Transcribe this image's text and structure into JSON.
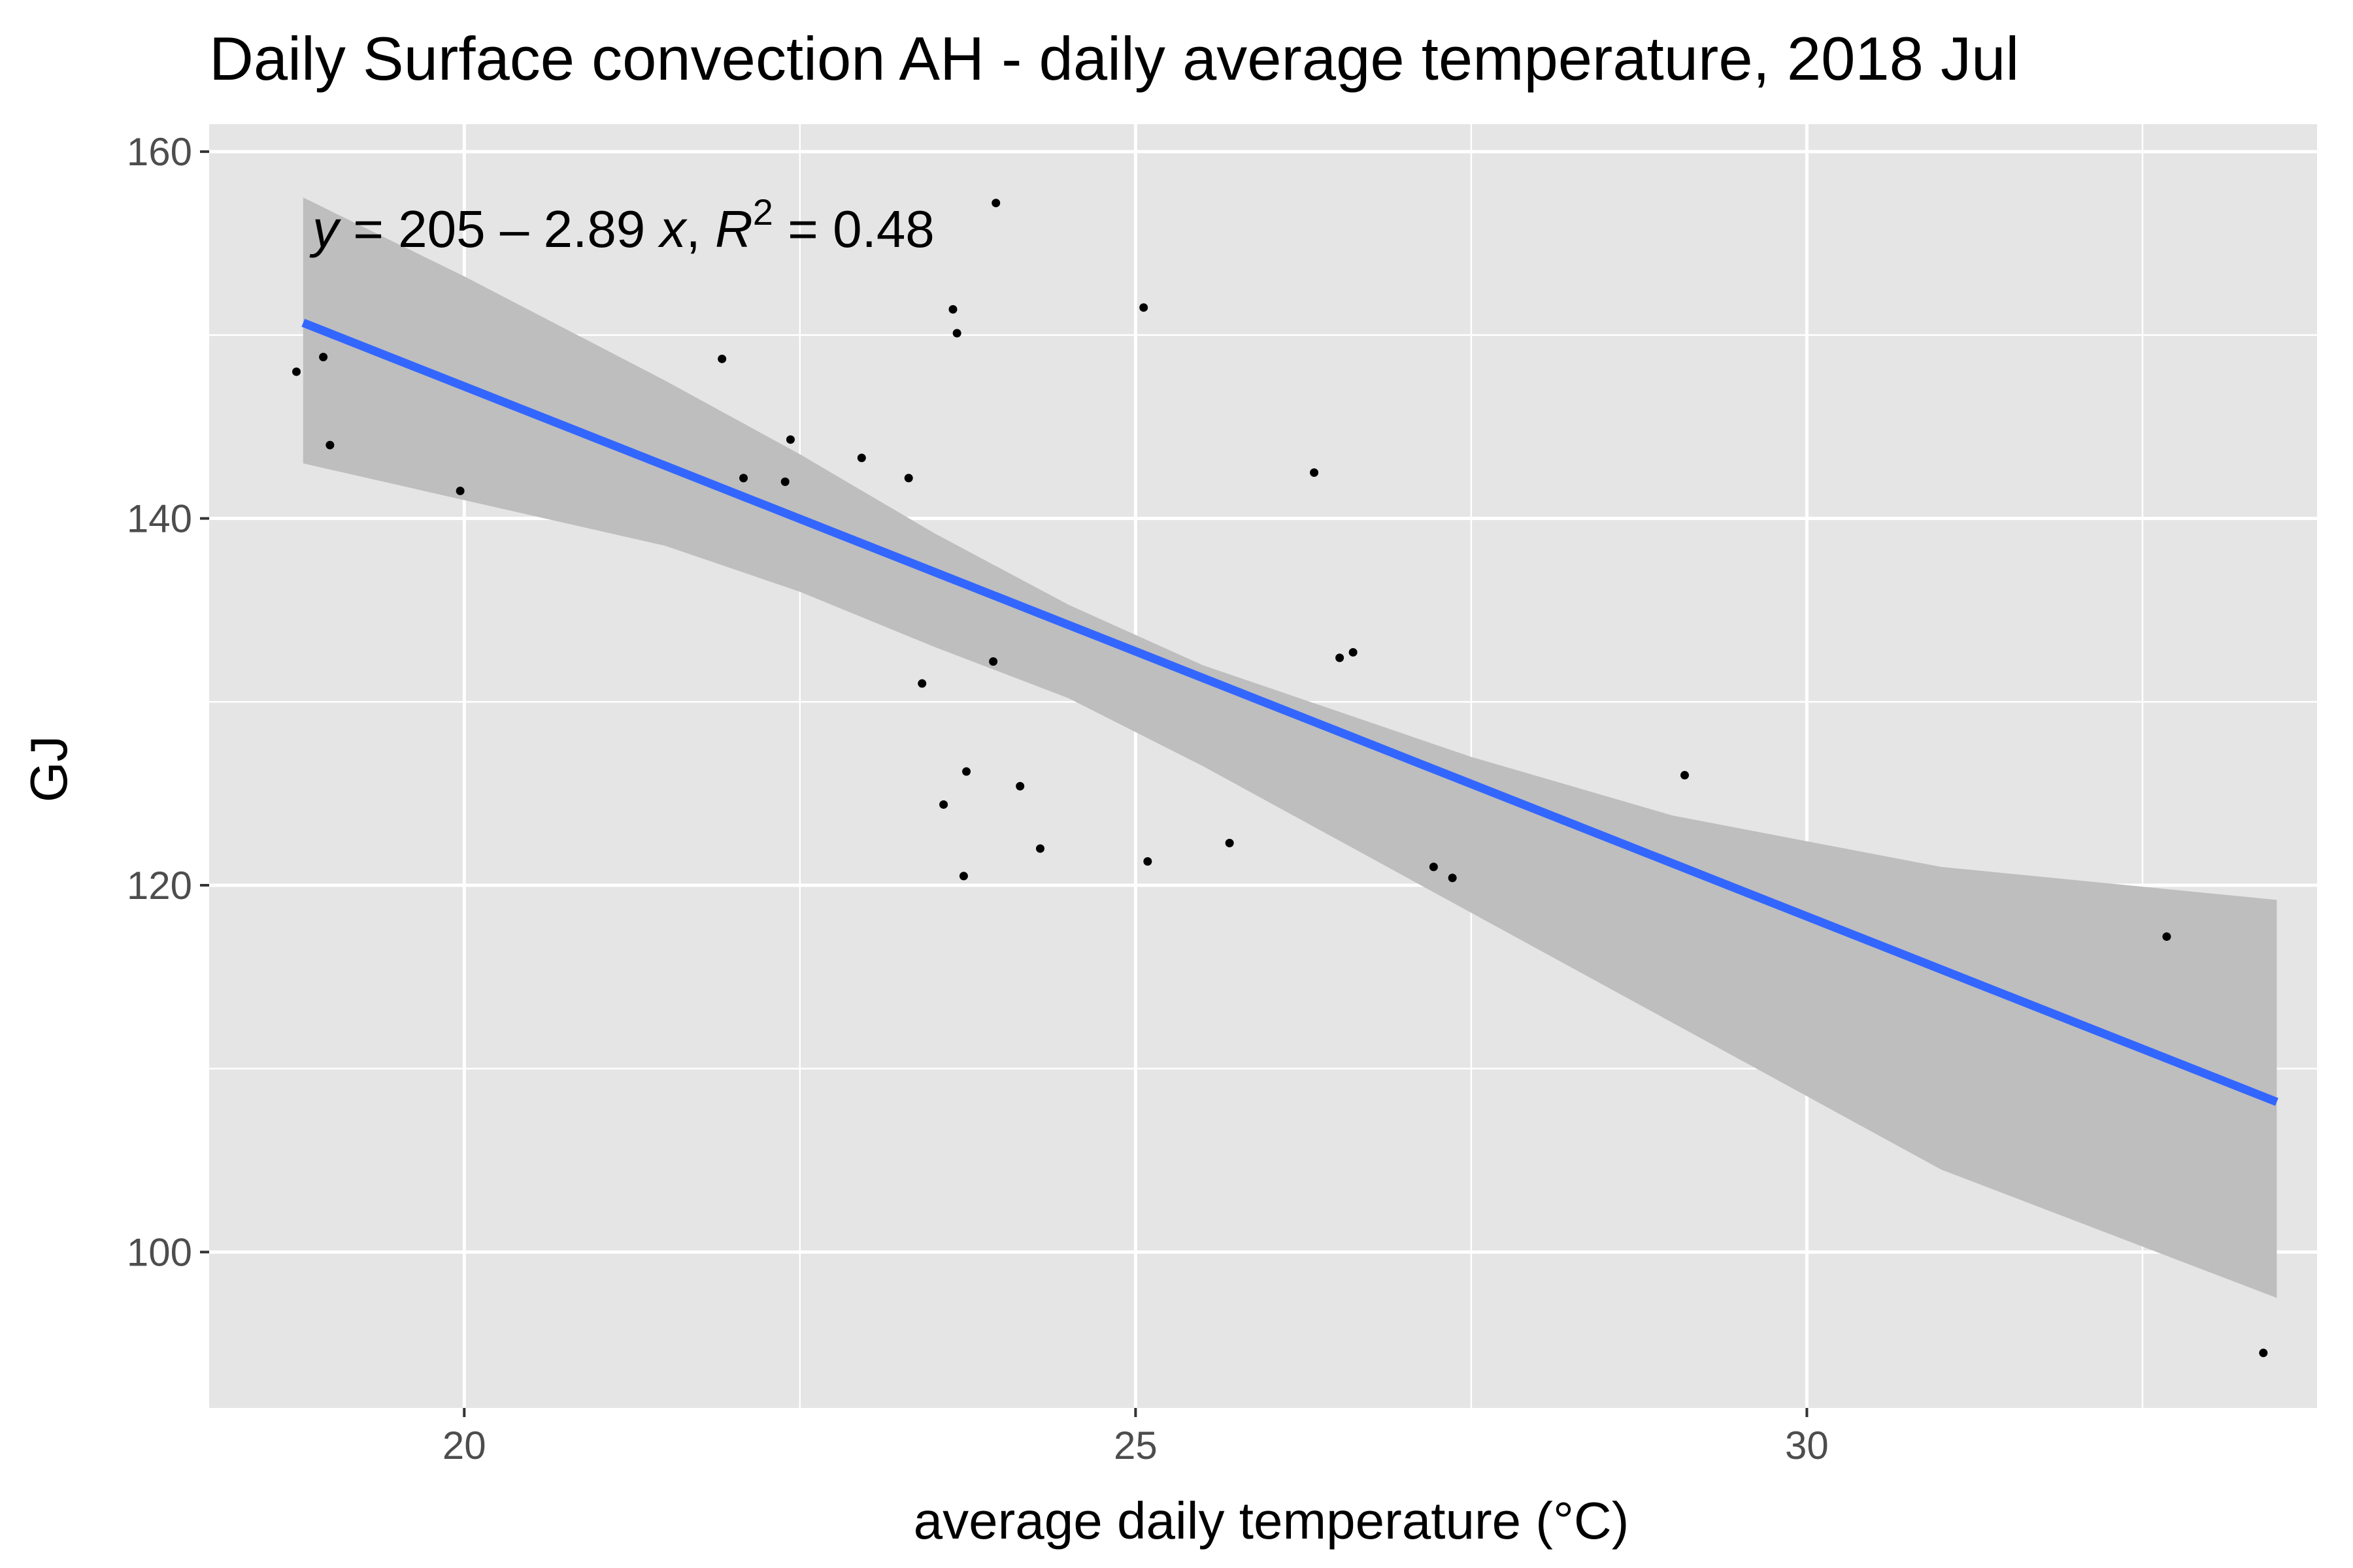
{
  "chart_data": {
    "type": "scatter",
    "title": "Daily Surface convection AH - daily average temperature, 2018 Jul",
    "xlabel": "average daily temperature (°C)",
    "ylabel": "GJ",
    "xlim": [
      18.1,
      33.8
    ],
    "ylim": [
      91.5,
      161.5
    ],
    "xticks": [
      20,
      25,
      30
    ],
    "yticks": [
      100,
      120,
      140,
      160
    ],
    "grid": true,
    "equation": {
      "y_symbol": "y",
      "rhs": " = 205 – 2.89 ",
      "x_symbol": "x",
      "sep": ", ",
      "r_symbol": "R",
      "r_exp": "2",
      "r_value": " = 0.48"
    },
    "regression": {
      "intercept": 205,
      "slope": -2.89,
      "r2": 0.48,
      "color": "#3366FF"
    },
    "confidence_band": [
      {
        "x": 18.8,
        "lower": 143.0,
        "upper": 157.5
      },
      {
        "x": 20.0,
        "lower": 141.0,
        "upper": 153.2
      },
      {
        "x": 21.5,
        "lower": 138.5,
        "upper": 147.5
      },
      {
        "x": 22.5,
        "lower": 136.0,
        "upper": 143.5
      },
      {
        "x": 23.5,
        "lower": 133.0,
        "upper": 139.2
      },
      {
        "x": 24.5,
        "lower": 130.2,
        "upper": 135.3
      },
      {
        "x": 25.5,
        "lower": 126.5,
        "upper": 132.0
      },
      {
        "x": 26.5,
        "lower": 122.5,
        "upper": 129.5
      },
      {
        "x": 27.5,
        "lower": 118.5,
        "upper": 127.0
      },
      {
        "x": 29.0,
        "lower": 112.5,
        "upper": 123.8
      },
      {
        "x": 31.0,
        "lower": 104.5,
        "upper": 121.0
      },
      {
        "x": 33.5,
        "lower": 97.5,
        "upper": 119.2
      }
    ],
    "fit_x_range": [
      18.8,
      33.5
    ],
    "points": [
      {
        "x": 18.75,
        "y": 148.0
      },
      {
        "x": 18.95,
        "y": 148.8
      },
      {
        "x": 19.0,
        "y": 144.0
      },
      {
        "x": 19.97,
        "y": 141.5
      },
      {
        "x": 21.92,
        "y": 148.7
      },
      {
        "x": 22.08,
        "y": 142.2
      },
      {
        "x": 22.39,
        "y": 142.0
      },
      {
        "x": 22.43,
        "y": 144.3
      },
      {
        "x": 22.96,
        "y": 143.3
      },
      {
        "x": 23.31,
        "y": 142.2
      },
      {
        "x": 23.41,
        "y": 131.0
      },
      {
        "x": 23.57,
        "y": 124.4
      },
      {
        "x": 23.64,
        "y": 151.4
      },
      {
        "x": 23.67,
        "y": 150.1
      },
      {
        "x": 23.72,
        "y": 120.5
      },
      {
        "x": 23.74,
        "y": 126.2
      },
      {
        "x": 23.94,
        "y": 132.2
      },
      {
        "x": 23.96,
        "y": 157.2
      },
      {
        "x": 24.14,
        "y": 125.4
      },
      {
        "x": 24.29,
        "y": 122.0
      },
      {
        "x": 25.06,
        "y": 151.5
      },
      {
        "x": 25.09,
        "y": 121.3
      },
      {
        "x": 25.7,
        "y": 122.3
      },
      {
        "x": 26.33,
        "y": 142.5
      },
      {
        "x": 26.52,
        "y": 132.4
      },
      {
        "x": 26.62,
        "y": 132.7
      },
      {
        "x": 27.22,
        "y": 121.0
      },
      {
        "x": 27.36,
        "y": 120.4
      },
      {
        "x": 29.09,
        "y": 126.0
      },
      {
        "x": 32.68,
        "y": 117.2
      },
      {
        "x": 33.4,
        "y": 94.5
      }
    ],
    "colors": {
      "panel": "#E5E5E5",
      "grid": "#FFFFFF",
      "band": "#BEBEBE",
      "point": "#000000",
      "line": "#3366FF"
    }
  }
}
